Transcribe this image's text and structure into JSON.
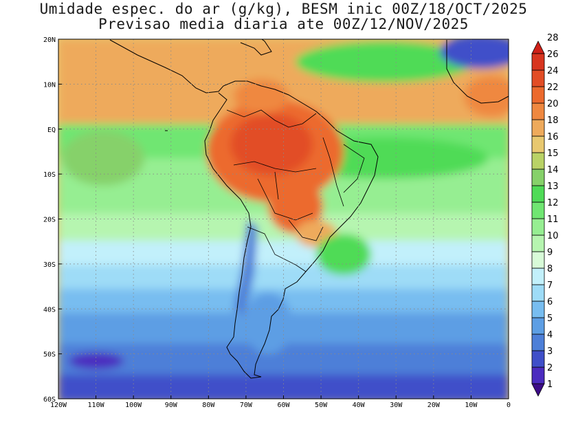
{
  "title": {
    "line1": "Umidade espec. do ar (g/kg), BESM inic 00Z/18/OCT/2025",
    "line2": "Previsao media diaria ate 00Z/12/NOV/2025"
  },
  "map": {
    "lon_range": [
      -120,
      0
    ],
    "lat_range": [
      -60,
      20
    ],
    "x_ticks": [
      "120W",
      "110W",
      "100W",
      "90W",
      "80W",
      "70W",
      "60W",
      "50W",
      "40W",
      "30W",
      "20W",
      "10W",
      "0"
    ],
    "y_ticks": [
      "20N",
      "10N",
      "EQ",
      "10S",
      "20S",
      "30S",
      "40S",
      "50S",
      "60S"
    ],
    "gridlines": "dotted"
  },
  "colorbar": {
    "levels": [
      "1",
      "2",
      "3",
      "4",
      "5",
      "6",
      "7",
      "8",
      "9",
      "10",
      "11",
      "12",
      "13",
      "14",
      "15",
      "16",
      "18",
      "20",
      "22",
      "24",
      "26",
      "28"
    ],
    "colors": [
      "#3c0c87",
      "#4b2bbf",
      "#3f4fc9",
      "#4d7fd8",
      "#5d9ee4",
      "#78bdf0",
      "#9edcf7",
      "#c2f0fb",
      "#d8fbd8",
      "#b6f5b0",
      "#96ee92",
      "#70e672",
      "#4fdb57",
      "#86d16a",
      "#b9d266",
      "#e8c870",
      "#eeaa5c",
      "#ef8840",
      "#ec6a2d",
      "#e24d25",
      "#d8351f",
      "#cf2018"
    ]
  }
}
